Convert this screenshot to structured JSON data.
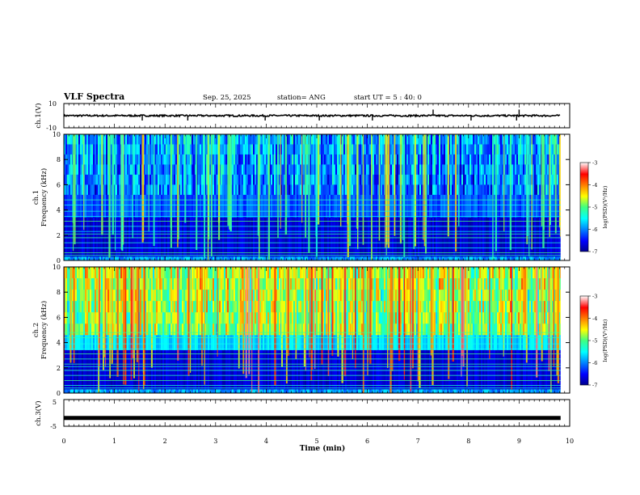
{
  "header": {
    "title": "VLF Spectra",
    "date": "Sep. 25, 2025",
    "station": "station= ANG",
    "start": "start  UT =   5  : 40: 0"
  },
  "chart_data": [
    {
      "type": "line",
      "name": "ch1-waveform",
      "ylabel": "ch.1(V)",
      "ylim": [
        -10,
        10
      ],
      "yticks": [
        "10",
        "-10"
      ],
      "xlim": [
        0,
        10
      ],
      "baseline": 0,
      "spikes_min": [
        1.55,
        2.45,
        3.98,
        5.05,
        6.1,
        8.05,
        8.95,
        7.3,
        9.0
      ]
    },
    {
      "type": "heatmap",
      "name": "ch1-spectrogram",
      "ylabel": "ch.1\nFrequency (kHz)",
      "ylim": [
        0,
        10
      ],
      "yticks": [
        "0",
        "2",
        "4",
        "6",
        "8",
        "10"
      ],
      "xlim": [
        0,
        10
      ],
      "colorbar": {
        "label": "log(PSD)(V²/Hz)",
        "range": [
          -7,
          -3
        ],
        "ticks": [
          "-3",
          "-4",
          "-5",
          "-6",
          "-7"
        ]
      },
      "intensity": "low"
    },
    {
      "type": "heatmap",
      "name": "ch2-spectrogram",
      "ylabel": "ch.2\nFrequency (kHz)",
      "ylim": [
        0,
        10
      ],
      "yticks": [
        "0",
        "2",
        "4",
        "6",
        "8",
        "10"
      ],
      "xlim": [
        0,
        10
      ],
      "colorbar": {
        "label": "log(PSD)(V²/Hz)",
        "range": [
          -7,
          -3
        ],
        "ticks": [
          "-3",
          "-4",
          "-5",
          "-6",
          "-7"
        ]
      },
      "intensity": "high"
    },
    {
      "type": "line",
      "name": "ch3-waveform",
      "ylabel": "ch.3(V)",
      "ylim": [
        -5,
        5
      ],
      "yticks": [
        "5",
        "-5"
      ],
      "xlim": [
        0,
        10
      ],
      "baseline": -1.9
    }
  ],
  "xaxis": {
    "label": "Time  (min)",
    "ticks": [
      "0",
      "1",
      "2",
      "3",
      "4",
      "5",
      "6",
      "7",
      "8",
      "9",
      "10"
    ],
    "range": [
      0,
      10
    ],
    "data_end": 9.82
  },
  "labels": {
    "ch1_name": "ch.1",
    "ch2_name": "ch.2",
    "freq_label": "Frequency (kHz)",
    "cb_label": "log(PSD)(V²/Hz)"
  },
  "colors": {
    "background": "#000060",
    "waveform": "#000000"
  }
}
